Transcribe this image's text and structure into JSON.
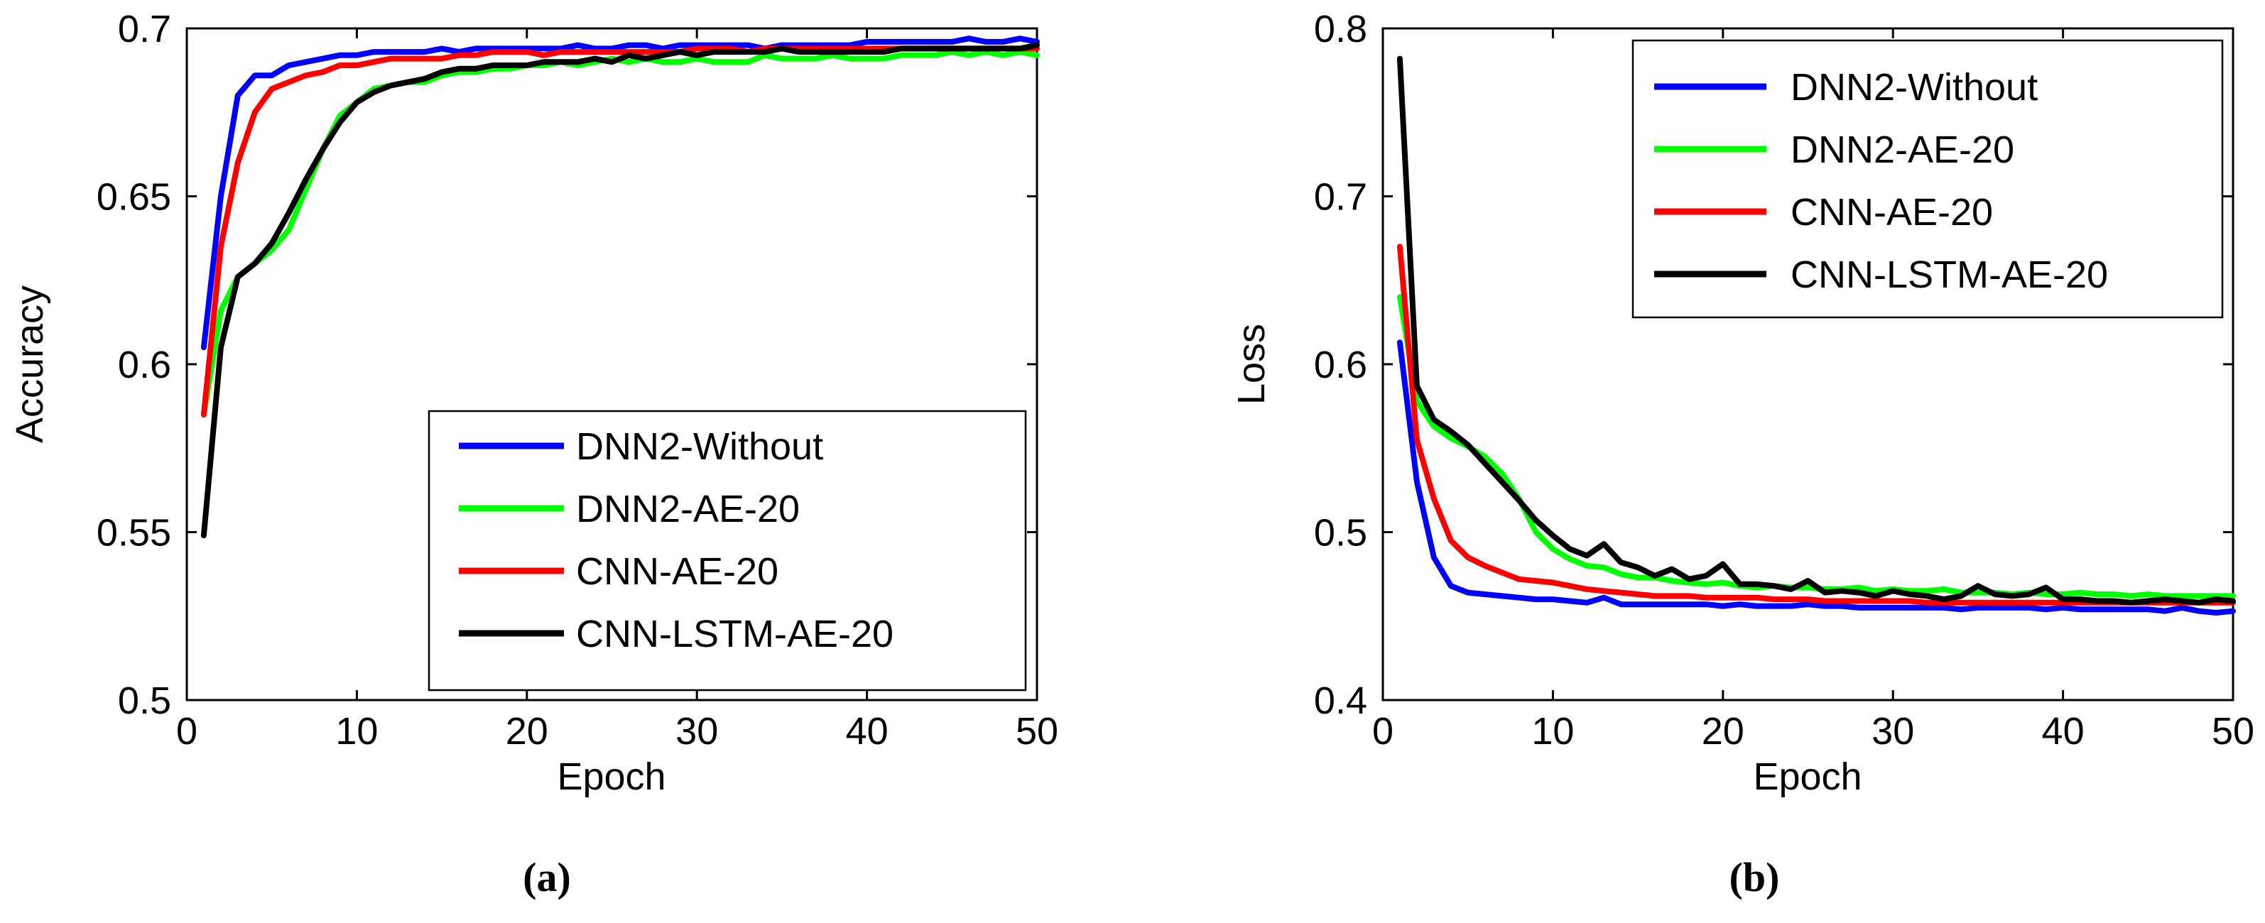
{
  "chart_data": [
    {
      "type": "line",
      "panel_label": "(a)",
      "title": "",
      "xlabel": "Epoch",
      "ylabel": "Accuracy",
      "xlim": [
        0,
        50
      ],
      "ylim": [
        0.5,
        0.7
      ],
      "xticks": [
        0,
        10,
        20,
        30,
        40,
        50
      ],
      "yticks": [
        0.5,
        0.55,
        0.6,
        0.65,
        0.7
      ],
      "xtick_labels": [
        "0",
        "10",
        "20",
        "30",
        "40",
        "50"
      ],
      "ytick_labels": [
        "0.5",
        "0.55",
        "0.6",
        "0.65",
        "0.7"
      ],
      "grid": false,
      "legend_position": "bottom-right",
      "x": [
        1,
        2,
        3,
        4,
        5,
        6,
        7,
        8,
        9,
        10,
        11,
        12,
        13,
        14,
        15,
        16,
        17,
        18,
        19,
        20,
        21,
        22,
        23,
        24,
        25,
        26,
        27,
        28,
        29,
        30,
        31,
        32,
        33,
        34,
        35,
        36,
        37,
        38,
        39,
        40,
        41,
        42,
        43,
        44,
        45,
        46,
        47,
        48,
        49,
        50
      ],
      "series": [
        {
          "name": "DNN2-Without",
          "color": "#0000ff",
          "values": [
            0.605,
            0.65,
            0.68,
            0.686,
            0.686,
            0.689,
            0.69,
            0.691,
            0.692,
            0.692,
            0.693,
            0.693,
            0.693,
            0.693,
            0.694,
            0.693,
            0.694,
            0.694,
            0.694,
            0.694,
            0.694,
            0.694,
            0.695,
            0.694,
            0.694,
            0.695,
            0.695,
            0.694,
            0.695,
            0.695,
            0.695,
            0.695,
            0.695,
            0.694,
            0.695,
            0.695,
            0.695,
            0.695,
            0.695,
            0.696,
            0.696,
            0.696,
            0.696,
            0.696,
            0.696,
            0.697,
            0.696,
            0.696,
            0.697,
            0.696
          ]
        },
        {
          "name": "DNN2-AE-20",
          "color": "#00ff00",
          "values": [
            0.585,
            0.616,
            0.626,
            0.63,
            0.634,
            0.64,
            0.652,
            0.664,
            0.674,
            0.678,
            0.682,
            0.683,
            0.684,
            0.684,
            0.686,
            0.687,
            0.687,
            0.688,
            0.688,
            0.689,
            0.689,
            0.69,
            0.689,
            0.69,
            0.691,
            0.69,
            0.691,
            0.69,
            0.69,
            0.691,
            0.69,
            0.69,
            0.69,
            0.692,
            0.691,
            0.691,
            0.691,
            0.692,
            0.691,
            0.691,
            0.691,
            0.692,
            0.692,
            0.692,
            0.693,
            0.692,
            0.693,
            0.692,
            0.693,
            0.692
          ]
        },
        {
          "name": "CNN-AE-20",
          "color": "#ff0000",
          "values": [
            0.585,
            0.635,
            0.66,
            0.675,
            0.682,
            0.684,
            0.686,
            0.687,
            0.689,
            0.689,
            0.69,
            0.691,
            0.691,
            0.691,
            0.691,
            0.692,
            0.692,
            0.693,
            0.693,
            0.693,
            0.692,
            0.693,
            0.693,
            0.693,
            0.693,
            0.693,
            0.693,
            0.693,
            0.693,
            0.694,
            0.694,
            0.694,
            0.693,
            0.694,
            0.694,
            0.694,
            0.694,
            0.694,
            0.694,
            0.694,
            0.694,
            0.694,
            0.694,
            0.694,
            0.694,
            0.694,
            0.694,
            0.694,
            0.694,
            0.694
          ]
        },
        {
          "name": "CNN-LSTM-AE-20",
          "color": "#000000",
          "values": [
            0.549,
            0.605,
            0.626,
            0.63,
            0.636,
            0.645,
            0.655,
            0.664,
            0.672,
            0.678,
            0.681,
            0.683,
            0.684,
            0.685,
            0.687,
            0.688,
            0.688,
            0.689,
            0.689,
            0.689,
            0.69,
            0.69,
            0.69,
            0.691,
            0.69,
            0.692,
            0.691,
            0.692,
            0.693,
            0.692,
            0.693,
            0.693,
            0.693,
            0.693,
            0.694,
            0.693,
            0.693,
            0.693,
            0.693,
            0.693,
            0.693,
            0.694,
            0.694,
            0.694,
            0.694,
            0.694,
            0.694,
            0.694,
            0.694,
            0.695
          ]
        }
      ]
    },
    {
      "type": "line",
      "panel_label": "(b)",
      "title": "",
      "xlabel": "Epoch",
      "ylabel": "Loss",
      "xlim": [
        0,
        50
      ],
      "ylim": [
        0.4,
        0.8
      ],
      "xticks": [
        0,
        10,
        20,
        30,
        40,
        50
      ],
      "yticks": [
        0.4,
        0.5,
        0.6,
        0.7,
        0.8
      ],
      "xtick_labels": [
        "0",
        "10",
        "20",
        "30",
        "40",
        "50"
      ],
      "ytick_labels": [
        "0.4",
        "0.5",
        "0.6",
        "0.7",
        "0.8"
      ],
      "grid": false,
      "legend_position": "top-right",
      "x": [
        1,
        2,
        3,
        4,
        5,
        6,
        7,
        8,
        9,
        10,
        11,
        12,
        13,
        14,
        15,
        16,
        17,
        18,
        19,
        20,
        21,
        22,
        23,
        24,
        25,
        26,
        27,
        28,
        29,
        30,
        31,
        32,
        33,
        34,
        35,
        36,
        37,
        38,
        39,
        40,
        41,
        42,
        43,
        44,
        45,
        46,
        47,
        48,
        49,
        50
      ],
      "series": [
        {
          "name": "DNN2-Without",
          "color": "#0000ff",
          "values": [
            0.613,
            0.53,
            0.485,
            0.468,
            0.464,
            0.463,
            0.462,
            0.461,
            0.46,
            0.46,
            0.459,
            0.458,
            0.461,
            0.457,
            0.457,
            0.457,
            0.457,
            0.457,
            0.457,
            0.456,
            0.457,
            0.456,
            0.456,
            0.456,
            0.457,
            0.456,
            0.456,
            0.455,
            0.455,
            0.455,
            0.455,
            0.455,
            0.455,
            0.454,
            0.455,
            0.455,
            0.455,
            0.455,
            0.454,
            0.455,
            0.454,
            0.454,
            0.454,
            0.454,
            0.454,
            0.453,
            0.455,
            0.453,
            0.452,
            0.453
          ]
        },
        {
          "name": "DNN2-AE-20",
          "color": "#00ff00",
          "values": [
            0.64,
            0.578,
            0.563,
            0.556,
            0.551,
            0.545,
            0.535,
            0.52,
            0.5,
            0.49,
            0.484,
            0.48,
            0.479,
            0.475,
            0.473,
            0.473,
            0.471,
            0.47,
            0.469,
            0.47,
            0.468,
            0.467,
            0.468,
            0.467,
            0.467,
            0.466,
            0.466,
            0.467,
            0.465,
            0.466,
            0.465,
            0.465,
            0.466,
            0.464,
            0.464,
            0.464,
            0.463,
            0.464,
            0.463,
            0.463,
            0.464,
            0.463,
            0.463,
            0.462,
            0.463,
            0.462,
            0.462,
            0.462,
            0.462,
            0.462
          ]
        },
        {
          "name": "CNN-AE-20",
          "color": "#ff0000",
          "values": [
            0.67,
            0.555,
            0.52,
            0.495,
            0.485,
            0.48,
            0.476,
            0.472,
            0.471,
            0.47,
            0.468,
            0.466,
            0.465,
            0.464,
            0.463,
            0.462,
            0.462,
            0.462,
            0.461,
            0.461,
            0.461,
            0.461,
            0.46,
            0.46,
            0.46,
            0.459,
            0.459,
            0.459,
            0.459,
            0.459,
            0.459,
            0.458,
            0.458,
            0.458,
            0.458,
            0.458,
            0.458,
            0.458,
            0.458,
            0.458,
            0.458,
            0.458,
            0.458,
            0.458,
            0.458,
            0.458,
            0.458,
            0.458,
            0.458,
            0.458
          ]
        },
        {
          "name": "CNN-LSTM-AE-20",
          "color": "#000000",
          "values": [
            0.782,
            0.587,
            0.567,
            0.56,
            0.552,
            0.541,
            0.53,
            0.519,
            0.507,
            0.498,
            0.49,
            0.486,
            0.493,
            0.482,
            0.479,
            0.474,
            0.478,
            0.472,
            0.474,
            0.481,
            0.469,
            0.469,
            0.468,
            0.466,
            0.471,
            0.464,
            0.465,
            0.464,
            0.462,
            0.465,
            0.463,
            0.462,
            0.46,
            0.462,
            0.468,
            0.463,
            0.462,
            0.463,
            0.467,
            0.46,
            0.46,
            0.459,
            0.459,
            0.458,
            0.459,
            0.46,
            0.459,
            0.458,
            0.46,
            0.459
          ]
        }
      ]
    }
  ]
}
